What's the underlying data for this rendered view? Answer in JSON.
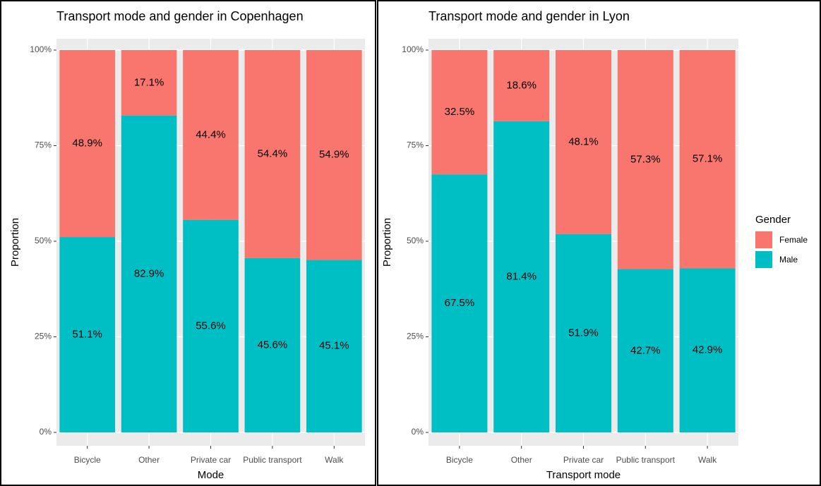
{
  "chart_data": [
    {
      "type": "bar",
      "stacked": true,
      "title": "Transport mode and gender in Copenhagen",
      "xlabel": "Mode",
      "ylabel": "Proportion",
      "categories": [
        "Bicycle",
        "Other",
        "Private car",
        "Public transport",
        "Walk"
      ],
      "series": [
        {
          "color": "#F8766D",
          "values": [
            48.9,
            17.1,
            44.4,
            54.4,
            54.9
          ],
          "value_labels": [
            "48.9%",
            "17.1%",
            "44.4%",
            "54.4%",
            "54.9%"
          ]
        },
        {
          "color": "#00BFC4",
          "values": [
            51.1,
            82.9,
            55.6,
            45.6,
            45.1
          ],
          "value_labels": [
            "51.1%",
            "82.9%",
            "55.6%",
            "45.6%",
            "45.1%"
          ]
        }
      ],
      "ylim": [
        0,
        100
      ],
      "yticks": [
        {
          "value": 0,
          "label": "0%"
        },
        {
          "value": 25,
          "label": "25%"
        },
        {
          "value": 50,
          "label": "50%"
        },
        {
          "value": 75,
          "label": "75%"
        },
        {
          "value": 100,
          "label": "100%"
        }
      ],
      "grid": true
    },
    {
      "type": "bar",
      "stacked": true,
      "title": "Transport mode and gender in Lyon",
      "xlabel": "Transport mode",
      "ylabel": "Proportion",
      "legend_title": "Gender",
      "legend_position": "right",
      "categories": [
        "Bicycle",
        "Other",
        "Private car",
        "Public transport",
        "Walk"
      ],
      "series": [
        {
          "name": "Female",
          "color": "#F8766D",
          "values": [
            32.5,
            18.6,
            48.1,
            57.3,
            57.1
          ],
          "value_labels": [
            "32.5%",
            "18.6%",
            "48.1%",
            "57.3%",
            "57.1%"
          ]
        },
        {
          "name": "Male",
          "color": "#00BFC4",
          "values": [
            67.5,
            81.4,
            51.9,
            42.7,
            42.9
          ],
          "value_labels": [
            "67.5%",
            "81.4%",
            "51.9%",
            "42.7%",
            "42.9%"
          ]
        }
      ],
      "ylim": [
        0,
        100
      ],
      "yticks": [
        {
          "value": 0,
          "label": "0%"
        },
        {
          "value": 25,
          "label": "25%"
        },
        {
          "value": 50,
          "label": "50%"
        },
        {
          "value": 75,
          "label": "75%"
        },
        {
          "value": 100,
          "label": "100%"
        }
      ],
      "grid": true
    }
  ]
}
